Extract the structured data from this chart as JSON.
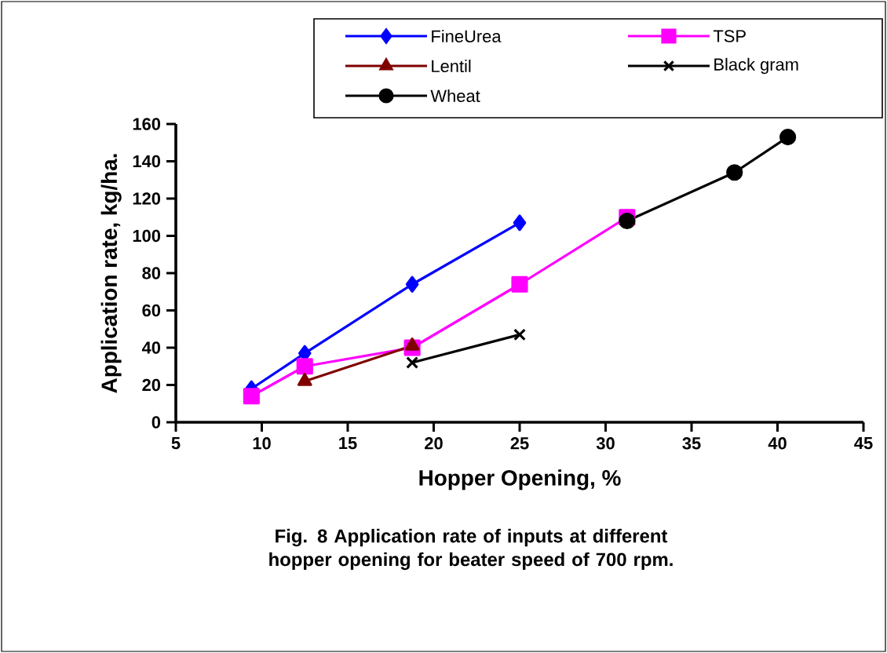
{
  "chart_data": {
    "type": "line",
    "xlabel": "Hopper Opening, %",
    "ylabel": "Application rate, kg/ha.",
    "annotations": [
      "Fig. 8 Application rate of inputs at different hopper opening for beater speed of 700 rpm."
    ],
    "xlim": [
      5,
      45
    ],
    "xticks": [
      5,
      10,
      15,
      20,
      25,
      30,
      35,
      40,
      45
    ],
    "ylim": [
      0,
      160
    ],
    "yticks": [
      0,
      20,
      40,
      60,
      80,
      100,
      120,
      140,
      160
    ],
    "grid": false,
    "legend": "top",
    "series": [
      {
        "name": "FineUrea",
        "color": "#0000ff",
        "marker": "diamond",
        "x": [
          9.4,
          12.5,
          18.75,
          25
        ],
        "values": [
          18,
          37,
          74,
          107
        ]
      },
      {
        "name": "TSP",
        "color": "#ff00ff",
        "marker": "square",
        "x": [
          9.4,
          12.5,
          18.75,
          25,
          31.25
        ],
        "values": [
          14,
          30,
          40,
          74,
          110
        ]
      },
      {
        "name": "Lentil",
        "color": "#800000",
        "marker": "triangle",
        "x": [
          12.5,
          18.75
        ],
        "values": [
          22,
          41
        ]
      },
      {
        "name": "Black gram",
        "color": "#000000",
        "marker": "cross",
        "x": [
          18.75,
          25
        ],
        "values": [
          32,
          47
        ]
      },
      {
        "name": "Wheat",
        "color": "#000000",
        "marker": "circle",
        "x": [
          31.25,
          37.5,
          40.6
        ],
        "values": [
          108,
          134,
          153
        ]
      }
    ]
  }
}
